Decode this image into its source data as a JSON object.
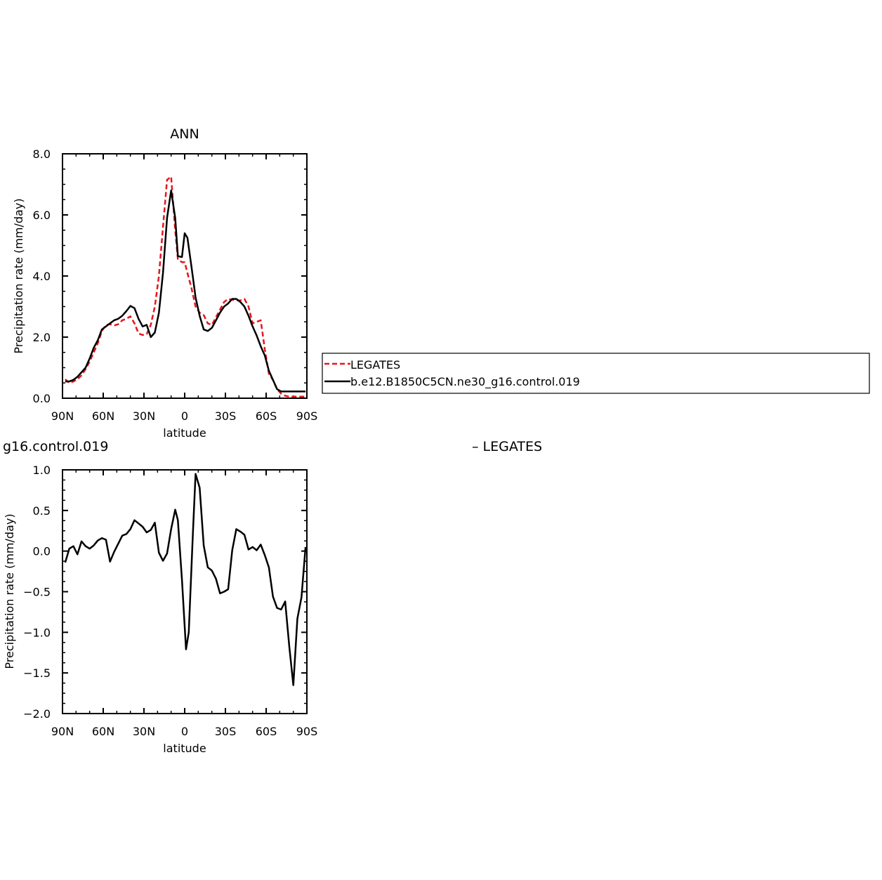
{
  "chart_data": [
    {
      "type": "line",
      "title": "ANN",
      "xlabel": "latitude",
      "ylabel": "Precipitation rate (mm/day)",
      "xlim": [
        90,
        -90
      ],
      "ylim": [
        0.0,
        8.0
      ],
      "xticks": [
        {
          "value": 90,
          "label": "90N"
        },
        {
          "value": 60,
          "label": "60N"
        },
        {
          "value": 30,
          "label": "30N"
        },
        {
          "value": 0,
          "label": "0"
        },
        {
          "value": -30,
          "label": "30S"
        },
        {
          "value": -60,
          "label": "60S"
        },
        {
          "value": -90,
          "label": "90S"
        }
      ],
      "yticks": [
        {
          "value": 0.0,
          "label": "0.0"
        },
        {
          "value": 2.0,
          "label": "2.0"
        },
        {
          "value": 4.0,
          "label": "4.0"
        },
        {
          "value": 6.0,
          "label": "6.0"
        },
        {
          "value": 8.0,
          "label": "8.0"
        }
      ],
      "legend_placement": "right",
      "series": [
        {
          "name": "LEGATES",
          "color": "#e8141c",
          "dash": "dashed",
          "x": [
            88,
            85,
            82,
            79,
            76,
            73,
            70,
            67,
            64,
            61,
            58,
            55,
            52,
            49,
            46,
            43,
            40,
            37,
            34,
            31,
            28,
            25,
            22,
            19,
            16,
            13,
            10,
            7,
            5,
            2,
            0,
            -2,
            -5,
            -8,
            -11,
            -14,
            -17,
            -20,
            -23,
            -26,
            -29,
            -32,
            -35,
            -38,
            -41,
            -44,
            -47,
            -50,
            -53,
            -56,
            -59,
            -62,
            -65,
            -68,
            -71,
            -74,
            -77,
            -80,
            -83,
            -86,
            -89
          ],
          "values": [
            0.62,
            0.5,
            0.55,
            0.62,
            0.75,
            0.95,
            1.2,
            1.5,
            1.8,
            2.2,
            2.4,
            2.42,
            2.38,
            2.42,
            2.55,
            2.6,
            2.68,
            2.45,
            2.12,
            2.07,
            2.1,
            2.4,
            3.0,
            4.0,
            5.6,
            7.15,
            7.25,
            5.5,
            4.55,
            4.45,
            4.45,
            4.1,
            3.6,
            3.0,
            2.8,
            2.72,
            2.45,
            2.4,
            2.65,
            2.9,
            3.15,
            3.25,
            3.22,
            3.2,
            3.2,
            3.25,
            3.0,
            2.45,
            2.5,
            2.55,
            1.6,
            0.8,
            0.6,
            0.3,
            0.15,
            0.08,
            0.05,
            0.05,
            0.05,
            0.05,
            0.05
          ]
        },
        {
          "name": "b.e12.B1850C5CN.ne30_g16.control.019",
          "color": "#000000",
          "dash": "solid",
          "x": [
            88,
            85,
            82,
            79,
            76,
            73,
            70,
            67,
            64,
            61,
            58,
            55,
            52,
            49,
            46,
            43,
            40,
            37,
            34,
            31,
            28,
            25,
            22,
            19,
            16,
            13,
            10,
            7,
            5,
            2,
            0,
            -2,
            -5,
            -8,
            -11,
            -14,
            -17,
            -20,
            -23,
            -26,
            -29,
            -32,
            -35,
            -38,
            -41,
            -44,
            -47,
            -50,
            -53,
            -56,
            -59,
            -62,
            -65,
            -68,
            -71,
            -74,
            -77,
            -80,
            -83,
            -86,
            -89
          ],
          "values": [
            0.55,
            0.55,
            0.6,
            0.7,
            0.85,
            1.0,
            1.3,
            1.65,
            1.9,
            2.25,
            2.35,
            2.45,
            2.55,
            2.6,
            2.7,
            2.85,
            3.02,
            2.95,
            2.6,
            2.35,
            2.4,
            2.0,
            2.15,
            2.8,
            4.1,
            5.9,
            6.8,
            5.9,
            4.65,
            4.62,
            5.4,
            5.25,
            4.3,
            3.3,
            2.7,
            2.25,
            2.2,
            2.3,
            2.55,
            2.8,
            3.0,
            3.1,
            3.25,
            3.25,
            3.15,
            3.0,
            2.7,
            2.35,
            2.05,
            1.7,
            1.4,
            0.9,
            0.6,
            0.3,
            0.22,
            0.22,
            0.22,
            0.22,
            0.22,
            0.22,
            0.22
          ]
        }
      ]
    },
    {
      "type": "line",
      "title": "g16.control.019",
      "title_right": "– LEGATES",
      "xlabel": "latitude",
      "ylabel": "Precipitation rate (mm/day)",
      "xlim": [
        90,
        -90
      ],
      "ylim": [
        -2.0,
        1.0
      ],
      "xticks": [
        {
          "value": 90,
          "label": "90N"
        },
        {
          "value": 60,
          "label": "60N"
        },
        {
          "value": 30,
          "label": "30N"
        },
        {
          "value": 0,
          "label": "0"
        },
        {
          "value": -30,
          "label": "30S"
        },
        {
          "value": -60,
          "label": "60S"
        },
        {
          "value": -90,
          "label": "90S"
        }
      ],
      "yticks": [
        {
          "value": -2.0,
          "label": "−2.0"
        },
        {
          "value": -1.5,
          "label": "−1.5"
        },
        {
          "value": -1.0,
          "label": "−1.0"
        },
        {
          "value": -0.5,
          "label": "−0.5"
        },
        {
          "value": 0.0,
          "label": "0.0"
        },
        {
          "value": 0.5,
          "label": "0.5"
        },
        {
          "value": 1.0,
          "label": "1.0"
        }
      ],
      "series": [
        {
          "color": "#000000",
          "dash": "solid",
          "x": [
            88,
            85,
            82,
            79,
            76,
            73,
            70,
            67,
            64,
            61,
            58,
            55,
            52,
            49,
            46,
            43,
            40,
            37,
            34,
            31,
            28,
            25,
            22,
            19,
            16,
            13,
            10,
            7,
            5,
            2,
            -1,
            -3,
            -6,
            -8,
            -11,
            -14,
            -17,
            -20,
            -23,
            -26,
            -29,
            -32,
            -35,
            -38,
            -41,
            -44,
            -47,
            -50,
            -53,
            -56,
            -59,
            -62,
            -65,
            -68,
            -71,
            -74,
            -77,
            -80,
            -83,
            -86,
            -89
          ],
          "values": [
            -0.14,
            0.03,
            0.06,
            -0.04,
            0.12,
            0.06,
            0.03,
            0.07,
            0.13,
            0.16,
            0.14,
            -0.13,
            -0.01,
            0.09,
            0.19,
            0.21,
            0.27,
            0.38,
            0.34,
            0.3,
            0.23,
            0.26,
            0.35,
            -0.02,
            -0.12,
            -0.03,
            0.27,
            0.51,
            0.38,
            -0.35,
            -1.21,
            -1.0,
            0.2,
            0.95,
            0.78,
            0.07,
            -0.2,
            -0.24,
            -0.34,
            -0.52,
            -0.5,
            -0.47,
            0.01,
            0.27,
            0.24,
            0.2,
            0.02,
            0.05,
            0.01,
            0.08,
            -0.05,
            -0.2,
            -0.56,
            -0.7,
            -0.72,
            -0.62,
            -1.17,
            -1.65,
            -0.83,
            -0.57,
            0.05
          ]
        }
      ]
    }
  ],
  "legend": {
    "entries": [
      {
        "label": "LEGATES",
        "color": "#e8141c",
        "dash": "dashed"
      },
      {
        "label": "b.e12.B1850C5CN.ne30_g16.control.019",
        "color": "#000000",
        "dash": "solid"
      }
    ]
  }
}
